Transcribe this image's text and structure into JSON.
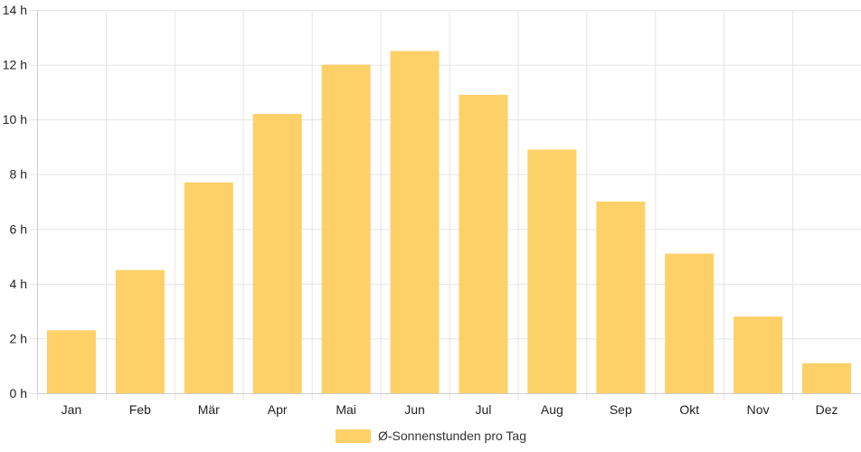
{
  "chart_data": {
    "type": "bar",
    "categories": [
      "Jan",
      "Feb",
      "Mär",
      "Apr",
      "Mai",
      "Jun",
      "Jul",
      "Aug",
      "Sep",
      "Okt",
      "Nov",
      "Dez"
    ],
    "series": [
      {
        "name": "Ø-Sonnenstunden pro Tag",
        "values": [
          2.3,
          4.5,
          7.7,
          10.2,
          12.0,
          12.5,
          10.9,
          8.9,
          7.0,
          5.1,
          2.8,
          1.1
        ],
        "color": "#fdd068"
      }
    ],
    "y_unit_suffix": " h",
    "ylim": [
      0,
      14
    ],
    "y_ticks": [
      0,
      2,
      4,
      6,
      8,
      10,
      12,
      14
    ],
    "grid": true,
    "legend_position": "bottom",
    "title": "",
    "xlabel": "",
    "ylabel": ""
  },
  "colors": {
    "grid": "#e5e5e5",
    "axis": "#cccccc",
    "text": "#222222"
  }
}
